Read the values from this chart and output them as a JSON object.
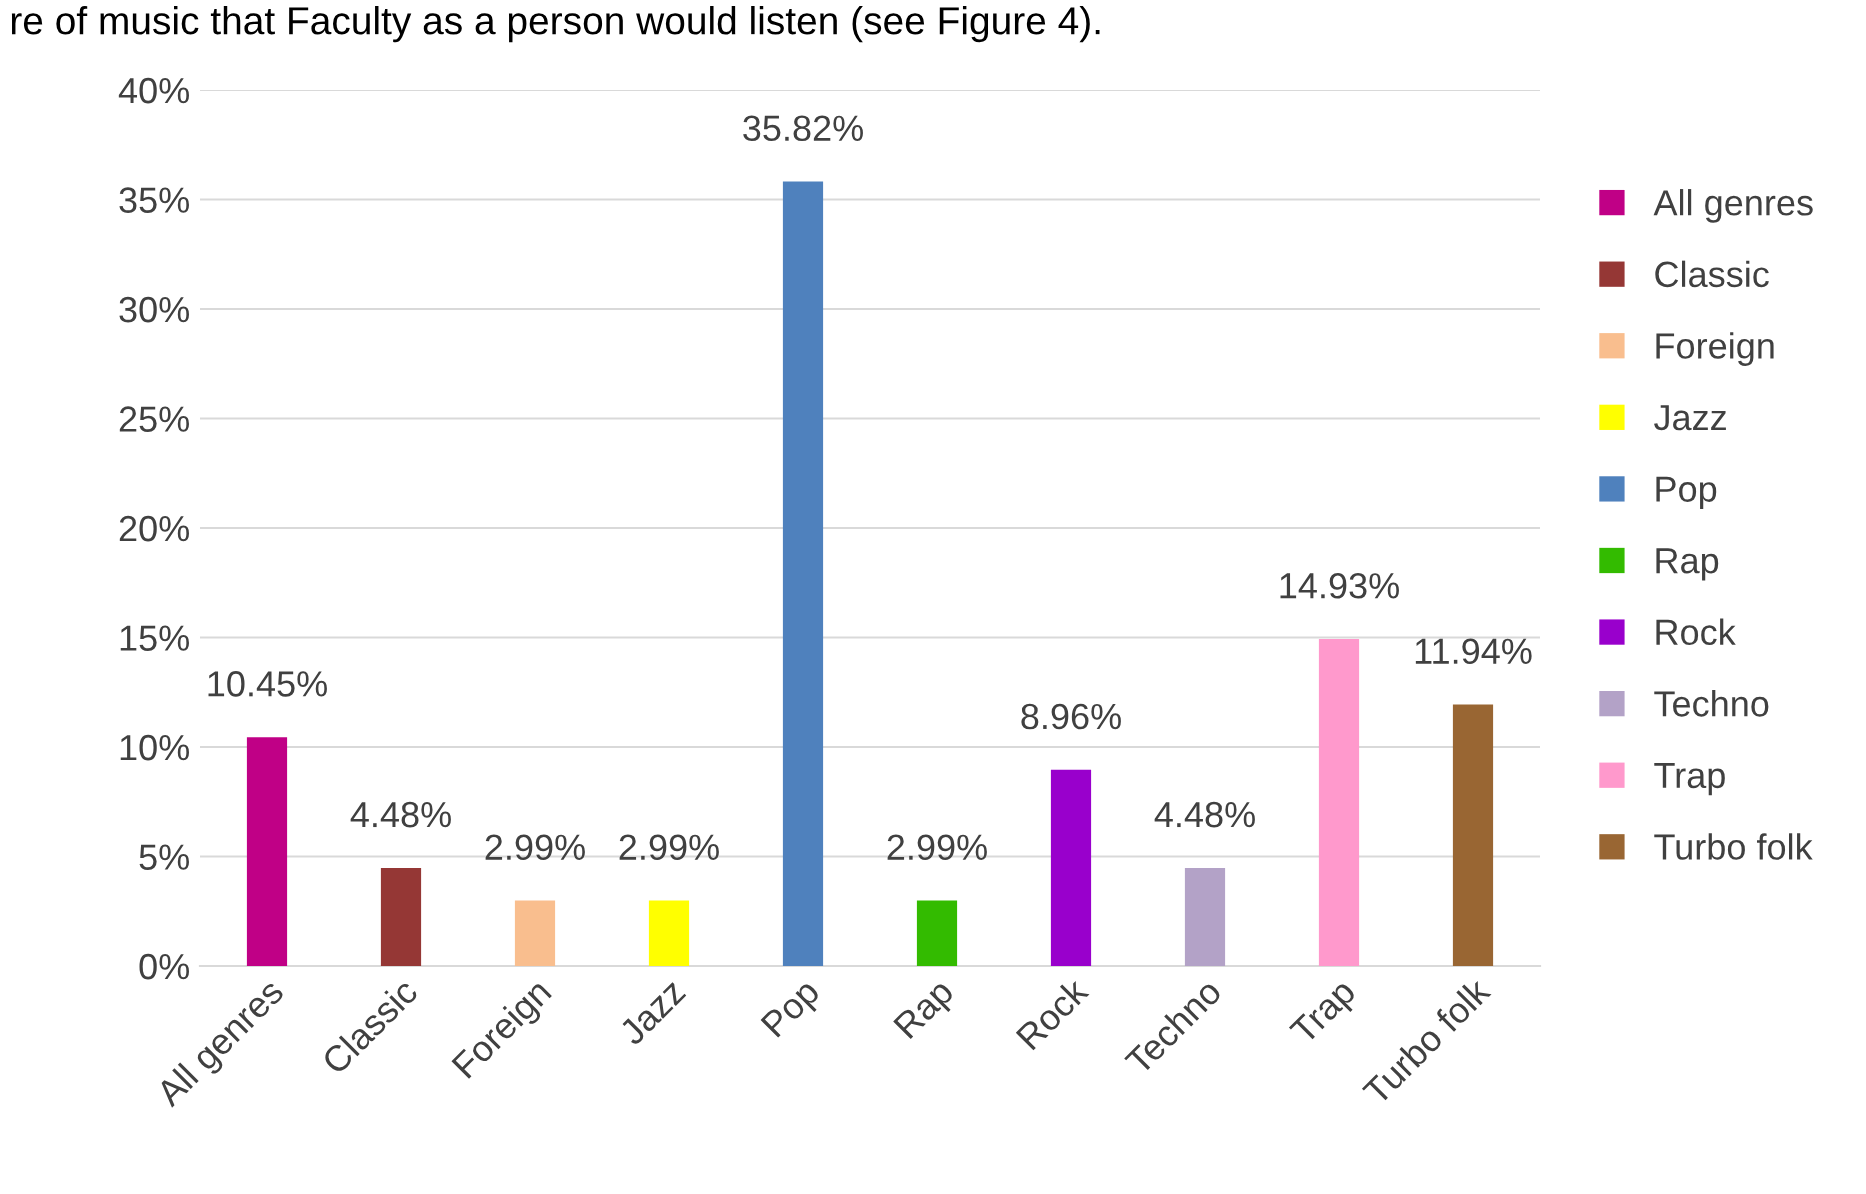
{
  "chart_data": {
    "type": "bar",
    "categories": [
      "All genres",
      "Classic",
      "Foreign",
      "Jazz",
      "Pop",
      "Rap",
      "Rock",
      "Techno",
      "Trap",
      "Turbo folk"
    ],
    "series": [
      {
        "name": "All genres",
        "color": "#c00086",
        "values": [
          10.45,
          null,
          null,
          null,
          null,
          null,
          null,
          null,
          null,
          null
        ],
        "value_labels": [
          "10.45%",
          null,
          null,
          null,
          null,
          null,
          null,
          null,
          null,
          null
        ]
      },
      {
        "name": "Classic",
        "color": "#953735",
        "values": [
          null,
          4.48,
          null,
          null,
          null,
          null,
          null,
          null,
          null,
          null
        ],
        "value_labels": [
          null,
          "4.48%",
          null,
          null,
          null,
          null,
          null,
          null,
          null,
          null
        ]
      },
      {
        "name": "Foreign",
        "color": "#f9be8e",
        "values": [
          null,
          null,
          2.99,
          null,
          null,
          null,
          null,
          null,
          null,
          null
        ],
        "value_labels": [
          null,
          null,
          "2.99%",
          null,
          null,
          null,
          null,
          null,
          null,
          null
        ]
      },
      {
        "name": "Jazz",
        "color": "#ffff00",
        "values": [
          null,
          null,
          null,
          2.99,
          null,
          null,
          null,
          null,
          null,
          null
        ],
        "value_labels": [
          null,
          null,
          null,
          "2.99%",
          null,
          null,
          null,
          null,
          null,
          null
        ]
      },
      {
        "name": "Pop",
        "color": "#4f81bd",
        "values": [
          null,
          null,
          null,
          null,
          35.82,
          null,
          null,
          null,
          null,
          null
        ],
        "value_labels": [
          null,
          null,
          null,
          null,
          "35.82%",
          null,
          null,
          null,
          null,
          null
        ]
      },
      {
        "name": "Rap",
        "color": "#33bb00",
        "values": [
          null,
          null,
          null,
          null,
          null,
          2.99,
          null,
          null,
          null,
          null
        ],
        "value_labels": [
          null,
          null,
          null,
          null,
          null,
          "2.99%",
          null,
          null,
          null,
          null
        ]
      },
      {
        "name": "Rock",
        "color": "#9900cc",
        "values": [
          null,
          null,
          null,
          null,
          null,
          null,
          8.96,
          null,
          null,
          null
        ],
        "value_labels": [
          null,
          null,
          null,
          null,
          null,
          null,
          "8.96%",
          null,
          null,
          null
        ]
      },
      {
        "name": "Techno",
        "color": "#b3a2c7",
        "values": [
          null,
          null,
          null,
          null,
          null,
          null,
          null,
          4.48,
          null,
          null
        ],
        "value_labels": [
          null,
          null,
          null,
          null,
          null,
          null,
          null,
          "4.48%",
          null,
          null
        ]
      },
      {
        "name": "Trap",
        "color": "#ff99cc",
        "values": [
          null,
          null,
          null,
          null,
          null,
          null,
          null,
          null,
          14.93,
          null
        ],
        "value_labels": [
          null,
          null,
          null,
          null,
          null,
          null,
          null,
          null,
          "14.93%",
          null
        ]
      },
      {
        "name": "Turbo folk",
        "color": "#996633",
        "values": [
          null,
          null,
          null,
          null,
          null,
          null,
          null,
          null,
          null,
          11.94
        ],
        "value_labels": [
          null,
          null,
          null,
          null,
          null,
          null,
          null,
          null,
          null,
          "11.94%"
        ]
      }
    ],
    "ylim": [
      0,
      40
    ],
    "yticks": [
      {
        "value": 0,
        "label": "0%"
      },
      {
        "value": 5,
        "label": "5%"
      },
      {
        "value": 10,
        "label": "10%"
      },
      {
        "value": 15,
        "label": "15%"
      },
      {
        "value": 20,
        "label": "20%"
      },
      {
        "value": 25,
        "label": "25%"
      },
      {
        "value": 30,
        "label": "30%"
      },
      {
        "value": 35,
        "label": "35%"
      },
      {
        "value": 40,
        "label": "40%"
      }
    ],
    "grid": "y",
    "legend": "right",
    "annotations": [
      "re of music that Faculty as a person would listen (see Figure 4)."
    ]
  }
}
